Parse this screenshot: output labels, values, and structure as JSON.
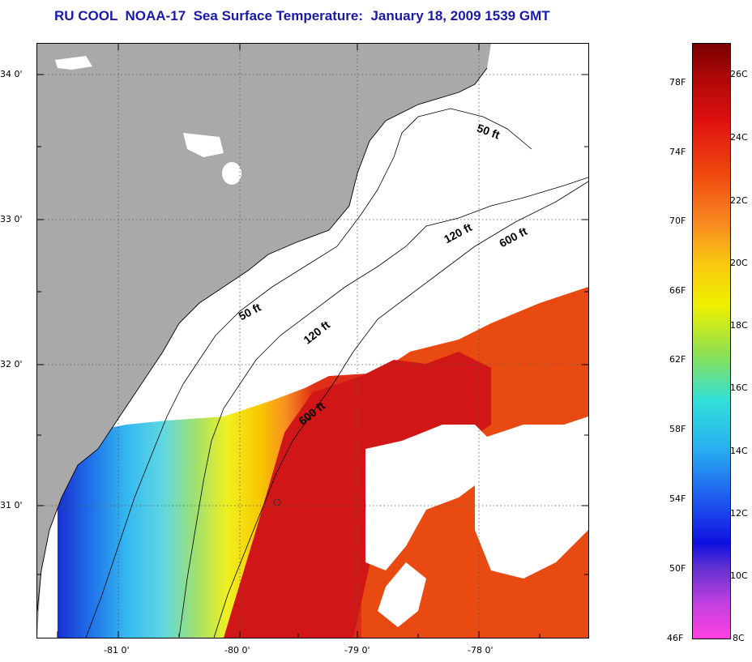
{
  "title": "RU COOL  NOAA-17  Sea Surface Temperature:  January 18, 2009 1539 GMT",
  "axes": {
    "lat_ticks": [
      "34 0'",
      "33 0'",
      "32 0'",
      "31 0'"
    ],
    "lon_ticks": [
      "-81 0'",
      "-80 0'",
      "-79 0'",
      "-78 0'"
    ]
  },
  "contours": {
    "c50_a": "50 ft",
    "c50_b": "50 ft",
    "c120_a": "120 ft",
    "c120_b": "120 ft",
    "c600_a": "600 ft",
    "c600_b": "600 ft"
  },
  "colorbar": {
    "fahrenheit": [
      "78F",
      "74F",
      "70F",
      "66F",
      "62F",
      "58F",
      "54F",
      "50F",
      "46F"
    ],
    "celsius": [
      "26C",
      "24C",
      "22C",
      "20C",
      "18C",
      "16C",
      "14C",
      "12C",
      "10C",
      "8C"
    ]
  },
  "colors": {
    "land": "#a9a9a9",
    "title": "#1a1aa8",
    "hot": "#cc1010",
    "warm": "#e84010"
  }
}
